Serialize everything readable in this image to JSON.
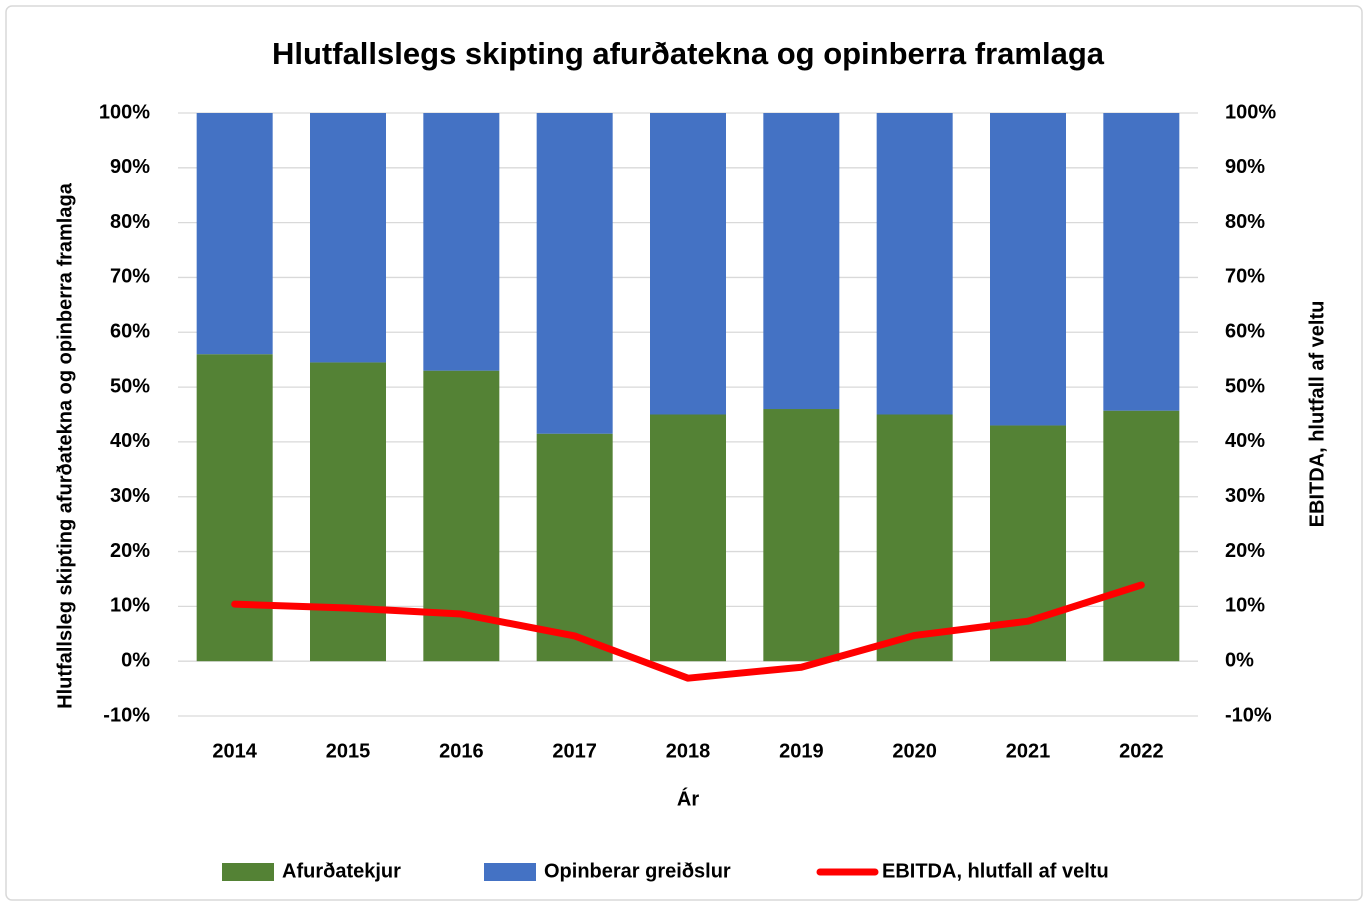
{
  "chart_data": {
    "type": "bar",
    "stacked": true,
    "title": "Hlutfallslegs skipting afurðatekna og opinberra framlaga",
    "x_label": "Ár",
    "y_label": "Hlutfallsleg skipting afurðatekna og opinberra framlaga",
    "y2_label": "EBITDA, hlutfall af veltu",
    "categories": [
      "2014",
      "2015",
      "2016",
      "2017",
      "2018",
      "2019",
      "2020",
      "2021",
      "2022"
    ],
    "series": [
      {
        "name": "Afurðatekjur",
        "color": "#548235",
        "type": "bar",
        "values": [
          56,
          54.5,
          53,
          41.5,
          45,
          46,
          45,
          43,
          45.7
        ]
      },
      {
        "name": "Opinberar greiðslur",
        "color": "#4472c4",
        "type": "bar",
        "values": [
          44,
          45.5,
          47,
          58.5,
          55,
          54,
          55,
          57,
          54.3
        ]
      },
      {
        "name": "EBITDA, hlutfall af veltu",
        "color": "#ff0000",
        "type": "line",
        "axis": "y2",
        "values": [
          10.4,
          9.7,
          8.6,
          4.6,
          -3.1,
          -1.1,
          4.7,
          7.3,
          13.9
        ]
      }
    ],
    "ylim": [
      -10,
      100
    ],
    "yticks": [
      {
        "value": -10,
        "label": "-10%"
      },
      {
        "value": 0,
        "label": "0%"
      },
      {
        "value": 10,
        "label": "10%"
      },
      {
        "value": 20,
        "label": "20%"
      },
      {
        "value": 30,
        "label": "30%"
      },
      {
        "value": 40,
        "label": "40%"
      },
      {
        "value": 50,
        "label": "50%"
      },
      {
        "value": 60,
        "label": "60%"
      },
      {
        "value": 70,
        "label": "70%"
      },
      {
        "value": 80,
        "label": "80%"
      },
      {
        "value": 90,
        "label": "90%"
      },
      {
        "value": 100,
        "label": "100%"
      }
    ],
    "y2lim": [
      -10,
      100
    ],
    "y2ticks": [
      {
        "value": -10,
        "label": "-10%"
      },
      {
        "value": 0,
        "label": "0%"
      },
      {
        "value": 10,
        "label": "10%"
      },
      {
        "value": 20,
        "label": "20%"
      },
      {
        "value": 30,
        "label": "30%"
      },
      {
        "value": 40,
        "label": "40%"
      },
      {
        "value": 50,
        "label": "50%"
      },
      {
        "value": 60,
        "label": "60%"
      },
      {
        "value": 70,
        "label": "70%"
      },
      {
        "value": 80,
        "label": "80%"
      },
      {
        "value": 90,
        "label": "90%"
      },
      {
        "value": 100,
        "label": "100%"
      }
    ],
    "grid": true,
    "legend": "bottom"
  }
}
